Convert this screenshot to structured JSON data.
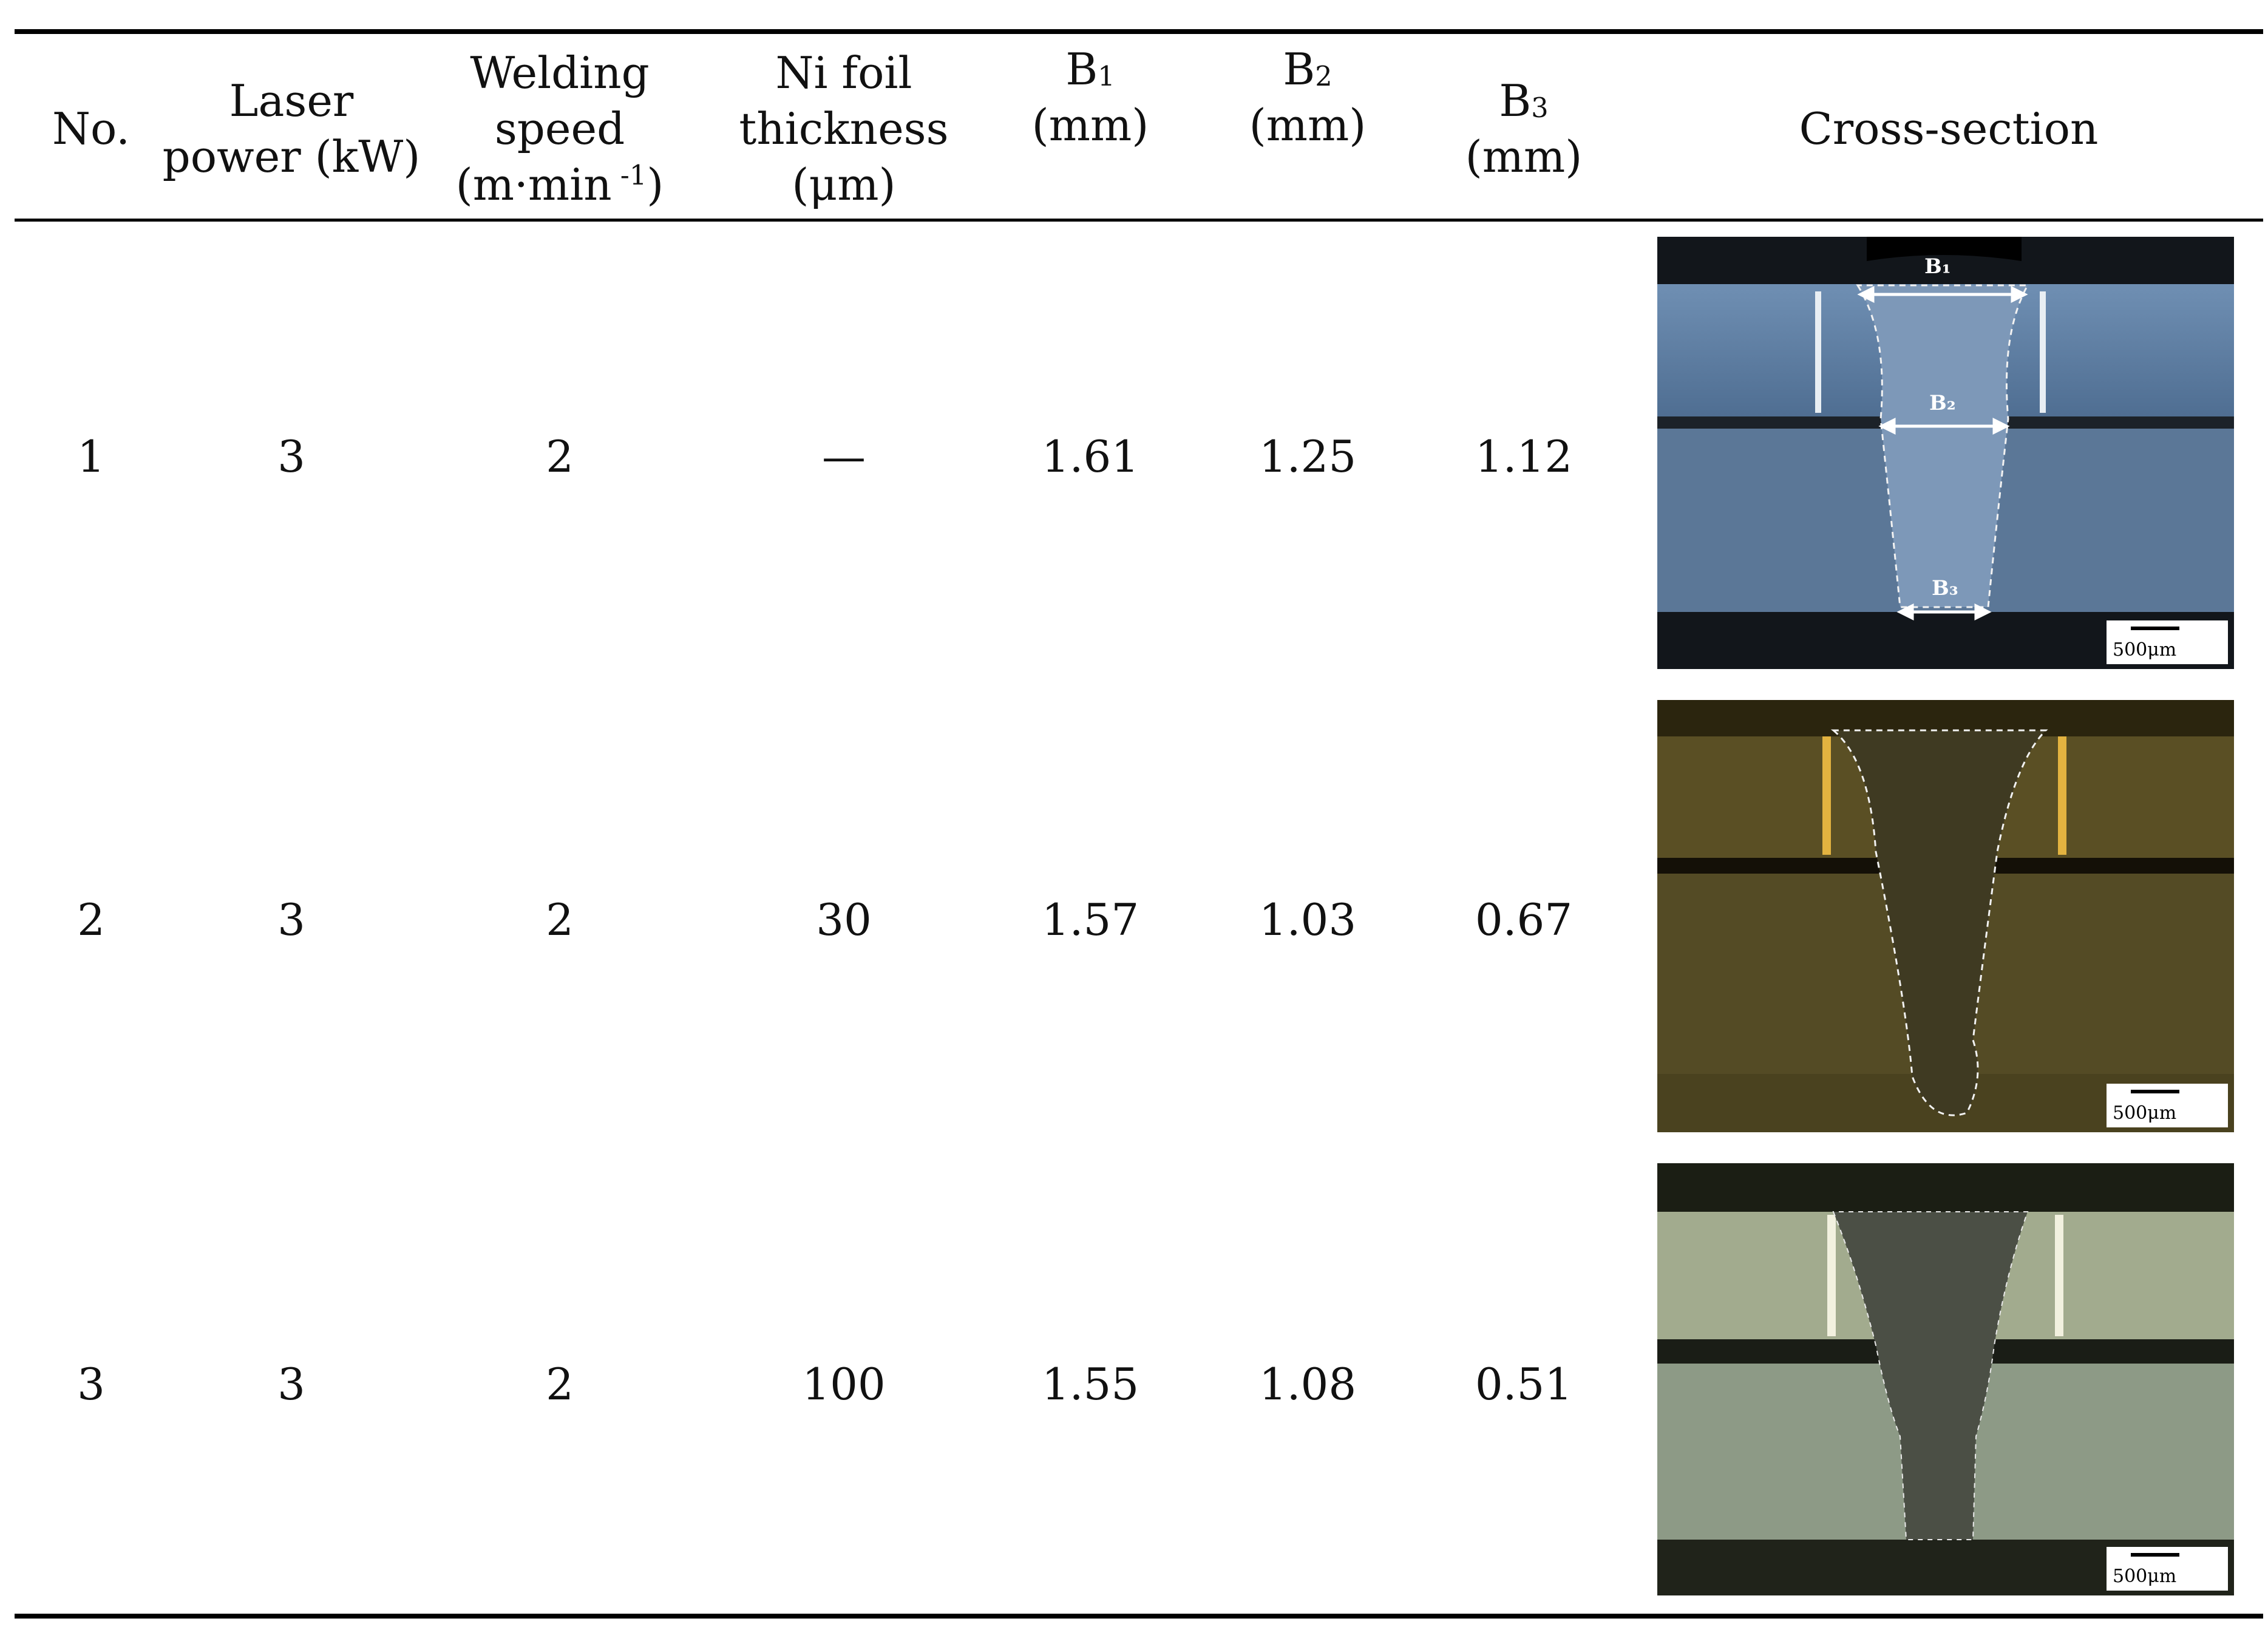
{
  "table": {
    "headers": {
      "no": "No.",
      "laser_l1": "Laser",
      "laser_l2": "power (kW)",
      "speed_l1": "Welding",
      "speed_l2": "speed",
      "speed_l3a": "(m·min",
      "speed_l3sup": " -1",
      "speed_l3b": ")",
      "ni_l1": "Ni foil",
      "ni_l2": "thickness",
      "ni_l3": "(μm)",
      "b1_a": "B",
      "b1_sub": "1",
      "b1_unit": "(mm)",
      "b2_a": "B",
      "b2_sub": "2",
      "b2_unit": "(mm)",
      "b3_a": "B",
      "b3_sub": "3",
      "b3_unit": "(mm)",
      "cross": "Cross-section"
    },
    "rows": [
      {
        "no": "1",
        "power": "3",
        "speed": "2",
        "ni": "—",
        "b1": "1.61",
        "b2": "1.25",
        "b3": "1.12"
      },
      {
        "no": "2",
        "power": "3",
        "speed": "2",
        "ni": "30",
        "b1": "1.57",
        "b2": "1.03",
        "b3": "0.67"
      },
      {
        "no": "3",
        "power": "3",
        "speed": "2",
        "ni": "100",
        "b1": "1.55",
        "b2": "1.08",
        "b3": "0.51"
      }
    ]
  },
  "images": {
    "img1": {
      "b1": "B₁",
      "b2": "B₂",
      "b3": "B₃",
      "scale": "500μm",
      "tint": "#5f7fa3"
    },
    "img2": {
      "scale": "500μm",
      "tint": "#6a5e2a"
    },
    "img3": {
      "scale": "500μm",
      "tint": "#8c9a7a"
    }
  }
}
